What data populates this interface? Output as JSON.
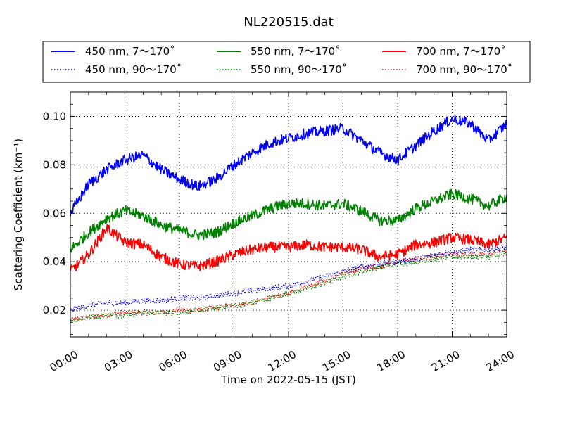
{
  "chart_data": {
    "type": "line",
    "title": "NL220515.dat",
    "xlabel": "Time on 2022-05-15 (JST)",
    "ylabel": "Scattering Coefficient (km⁻¹)",
    "x_range_hours": [
      0,
      24
    ],
    "ylim": [
      0.009,
      0.11
    ],
    "grid": true,
    "legend_position": "top",
    "x_ticks": [
      {
        "hour": 0,
        "label": "00:00"
      },
      {
        "hour": 3,
        "label": "03:00"
      },
      {
        "hour": 6,
        "label": "06:00"
      },
      {
        "hour": 9,
        "label": "09:00"
      },
      {
        "hour": 12,
        "label": "12:00"
      },
      {
        "hour": 15,
        "label": "15:00"
      },
      {
        "hour": 18,
        "label": "18:00"
      },
      {
        "hour": 21,
        "label": "21:00"
      },
      {
        "hour": 24,
        "label": "24:00"
      }
    ],
    "y_ticks": [
      {
        "value": 0.02,
        "label": "0.02"
      },
      {
        "value": 0.04,
        "label": "0.04"
      },
      {
        "value": 0.06,
        "label": "0.06"
      },
      {
        "value": 0.08,
        "label": "0.08"
      },
      {
        "value": 0.1,
        "label": "0.10"
      }
    ],
    "x_hours": [
      0,
      1,
      2,
      3,
      4,
      5,
      6,
      7,
      8,
      9,
      10,
      11,
      12,
      13,
      14,
      15,
      16,
      17,
      18,
      19,
      20,
      21,
      22,
      23,
      24
    ],
    "series": [
      {
        "name": "450 nm, 7～170˚",
        "color": "#0000ff",
        "style": "solid",
        "values": [
          0.06,
          0.072,
          0.078,
          0.082,
          0.084,
          0.078,
          0.074,
          0.071,
          0.074,
          0.08,
          0.085,
          0.089,
          0.091,
          0.093,
          0.094,
          0.095,
          0.09,
          0.085,
          0.082,
          0.088,
          0.094,
          0.099,
          0.097,
          0.09,
          0.097
        ]
      },
      {
        "name": "450 nm, 90～170˚",
        "color": "#0000ff",
        "style": "dotted",
        "values": [
          0.02,
          0.022,
          0.023,
          0.023,
          0.024,
          0.024,
          0.025,
          0.025,
          0.026,
          0.027,
          0.028,
          0.029,
          0.03,
          0.032,
          0.034,
          0.036,
          0.038,
          0.039,
          0.04,
          0.041,
          0.043,
          0.044,
          0.045,
          0.045,
          0.046
        ]
      },
      {
        "name": "550 nm, 7～170˚",
        "color": "#008000",
        "style": "solid",
        "values": [
          0.045,
          0.052,
          0.058,
          0.061,
          0.059,
          0.055,
          0.053,
          0.051,
          0.052,
          0.056,
          0.059,
          0.062,
          0.064,
          0.064,
          0.063,
          0.064,
          0.061,
          0.057,
          0.057,
          0.062,
          0.065,
          0.068,
          0.066,
          0.063,
          0.067
        ]
      },
      {
        "name": "550 nm, 90～170˚",
        "color": "#008000",
        "style": "dotted",
        "values": [
          0.016,
          0.017,
          0.018,
          0.018,
          0.019,
          0.019,
          0.019,
          0.02,
          0.021,
          0.022,
          0.023,
          0.025,
          0.027,
          0.029,
          0.031,
          0.034,
          0.036,
          0.038,
          0.039,
          0.04,
          0.041,
          0.042,
          0.042,
          0.042,
          0.043
        ]
      },
      {
        "name": "700 nm, 7～170˚",
        "color": "#ff0000",
        "style": "solid",
        "values": [
          0.036,
          0.043,
          0.054,
          0.048,
          0.047,
          0.042,
          0.039,
          0.038,
          0.04,
          0.043,
          0.045,
          0.046,
          0.046,
          0.047,
          0.046,
          0.046,
          0.045,
          0.042,
          0.043,
          0.047,
          0.048,
          0.05,
          0.049,
          0.047,
          0.05
        ]
      },
      {
        "name": "700 nm, 90～170˚",
        "color": "#ff0000",
        "style": "dotted",
        "values": [
          0.016,
          0.017,
          0.018,
          0.019,
          0.019,
          0.019,
          0.02,
          0.02,
          0.021,
          0.022,
          0.023,
          0.025,
          0.027,
          0.03,
          0.032,
          0.035,
          0.037,
          0.038,
          0.04,
          0.041,
          0.042,
          0.043,
          0.043,
          0.043,
          0.044
        ]
      }
    ]
  }
}
